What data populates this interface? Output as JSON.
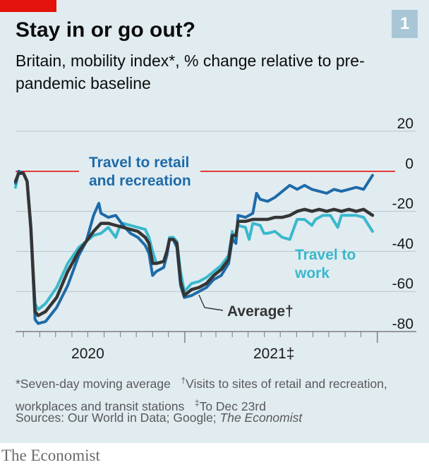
{
  "header": {
    "title": "Stay in or go out?",
    "subtitle": "Britain, mobility index*, % change relative to pre-pandemic baseline",
    "badge": "1"
  },
  "footnote": {
    "star": "*Seven-day moving average",
    "dagger_mark": "†",
    "dagger": "Visits to sites of retail and recreation, workplaces and transit stations",
    "ddagger_mark": "‡",
    "ddagger": "To Dec 23rd"
  },
  "sources": {
    "prefix": "Sources: Our World in Data; Google; ",
    "italic": "The Economist"
  },
  "brand": "The Economist",
  "colors": {
    "retail": "#1e6ba8",
    "work": "#3ab8cc",
    "average": "#353535",
    "baseline": "#e3120b",
    "grid": "#b7c4cb",
    "background": "#e1ecf1"
  },
  "chart_data": {
    "type": "line",
    "x_unit": "date",
    "x_ticks": [
      {
        "label": "2020",
        "date": "2020-07-01"
      },
      {
        "label": "2021‡",
        "date": "2021-07-01"
      }
    ],
    "ylim": [
      -80,
      20
    ],
    "yticks": [
      20,
      0,
      -20,
      -40,
      -60,
      -80
    ],
    "grid": true,
    "reference_line": 0,
    "series": [
      {
        "name": "Travel to retail and recreation",
        "label_lines": [
          "Travel to retail",
          "and recreation"
        ],
        "color": "#1e6ba8",
        "points": [
          [
            "2020-02-15",
            -6
          ],
          [
            "2020-02-21",
            0
          ],
          [
            "2020-03-01",
            -1
          ],
          [
            "2020-03-08",
            -5
          ],
          [
            "2020-03-15",
            -28
          ],
          [
            "2020-03-23",
            -74
          ],
          [
            "2020-03-29",
            -76
          ],
          [
            "2020-04-12",
            -75
          ],
          [
            "2020-05-03",
            -68
          ],
          [
            "2020-05-24",
            -57
          ],
          [
            "2020-06-14",
            -42
          ],
          [
            "2020-06-28",
            -35
          ],
          [
            "2020-07-12",
            -22
          ],
          [
            "2020-07-22",
            -16
          ],
          [
            "2020-07-26",
            -21
          ],
          [
            "2020-08-09",
            -23
          ],
          [
            "2020-08-23",
            -22
          ],
          [
            "2020-09-06",
            -27
          ],
          [
            "2020-09-20",
            -31
          ],
          [
            "2020-10-04",
            -33
          ],
          [
            "2020-10-18",
            -37
          ],
          [
            "2020-10-25",
            -41
          ],
          [
            "2020-11-01",
            -52
          ],
          [
            "2020-11-08",
            -50
          ],
          [
            "2020-11-22",
            -48
          ],
          [
            "2020-11-28",
            -42
          ],
          [
            "2020-12-03",
            -34
          ],
          [
            "2020-12-10",
            -34
          ],
          [
            "2020-12-17",
            -38
          ],
          [
            "2020-12-24",
            -57
          ],
          [
            "2020-12-31",
            -63
          ],
          [
            "2021-01-14",
            -62
          ],
          [
            "2021-01-28",
            -60
          ],
          [
            "2021-02-11",
            -58
          ],
          [
            "2021-02-25",
            -54
          ],
          [
            "2021-03-11",
            -52
          ],
          [
            "2021-03-25",
            -46
          ],
          [
            "2021-04-01",
            -34
          ],
          [
            "2021-04-08",
            -36
          ],
          [
            "2021-04-12",
            -22
          ],
          [
            "2021-04-26",
            -23
          ],
          [
            "2021-05-10",
            -21
          ],
          [
            "2021-05-17",
            -11
          ],
          [
            "2021-05-24",
            -14
          ],
          [
            "2021-06-07",
            -15
          ],
          [
            "2021-06-21",
            -13
          ],
          [
            "2021-07-05",
            -10
          ],
          [
            "2021-07-19",
            -7
          ],
          [
            "2021-08-02",
            -9
          ],
          [
            "2021-08-16",
            -7
          ],
          [
            "2021-08-30",
            -9
          ],
          [
            "2021-09-13",
            -10
          ],
          [
            "2021-09-27",
            -11
          ],
          [
            "2021-10-11",
            -9
          ],
          [
            "2021-10-25",
            -10
          ],
          [
            "2021-11-08",
            -9
          ],
          [
            "2021-11-22",
            -8
          ],
          [
            "2021-12-06",
            -9
          ],
          [
            "2021-12-23",
            -2
          ]
        ]
      },
      {
        "name": "Travel to work",
        "label_lines": [
          "Travel to",
          "work"
        ],
        "color": "#3ab8cc",
        "points": [
          [
            "2020-02-15",
            -8
          ],
          [
            "2020-02-21",
            0
          ],
          [
            "2020-03-01",
            -1
          ],
          [
            "2020-03-08",
            -5
          ],
          [
            "2020-03-15",
            -30
          ],
          [
            "2020-03-23",
            -66
          ],
          [
            "2020-03-29",
            -69
          ],
          [
            "2020-04-12",
            -66
          ],
          [
            "2020-05-03",
            -58
          ],
          [
            "2020-05-24",
            -46
          ],
          [
            "2020-06-14",
            -38
          ],
          [
            "2020-06-28",
            -35
          ],
          [
            "2020-07-12",
            -32
          ],
          [
            "2020-07-26",
            -31
          ],
          [
            "2020-08-09",
            -28
          ],
          [
            "2020-08-23",
            -33
          ],
          [
            "2020-08-30",
            -28
          ],
          [
            "2020-09-06",
            -26
          ],
          [
            "2020-09-20",
            -27
          ],
          [
            "2020-10-04",
            -28
          ],
          [
            "2020-10-18",
            -29
          ],
          [
            "2020-10-25",
            -33
          ],
          [
            "2020-11-01",
            -40
          ],
          [
            "2020-11-08",
            -46
          ],
          [
            "2020-11-22",
            -45
          ],
          [
            "2020-11-28",
            -42
          ],
          [
            "2020-12-03",
            -33
          ],
          [
            "2020-12-10",
            -33
          ],
          [
            "2020-12-17",
            -35
          ],
          [
            "2020-12-24",
            -50
          ],
          [
            "2020-12-31",
            -60
          ],
          [
            "2021-01-14",
            -56
          ],
          [
            "2021-01-28",
            -55
          ],
          [
            "2021-02-11",
            -53
          ],
          [
            "2021-02-25",
            -50
          ],
          [
            "2021-03-11",
            -47
          ],
          [
            "2021-03-25",
            -42
          ],
          [
            "2021-04-01",
            -30
          ],
          [
            "2021-04-05",
            -35
          ],
          [
            "2021-04-12",
            -27
          ],
          [
            "2021-04-26",
            -28
          ],
          [
            "2021-05-03",
            -34
          ],
          [
            "2021-05-10",
            -26
          ],
          [
            "2021-05-24",
            -27
          ],
          [
            "2021-05-31",
            -31
          ],
          [
            "2021-06-07",
            -31
          ],
          [
            "2021-06-21",
            -30
          ],
          [
            "2021-07-05",
            -33
          ],
          [
            "2021-07-19",
            -34
          ],
          [
            "2021-08-02",
            -24
          ],
          [
            "2021-08-16",
            -24
          ],
          [
            "2021-08-30",
            -27
          ],
          [
            "2021-09-06",
            -24
          ],
          [
            "2021-09-20",
            -22
          ],
          [
            "2021-10-04",
            -22
          ],
          [
            "2021-10-18",
            -28
          ],
          [
            "2021-10-25",
            -22
          ],
          [
            "2021-11-08",
            -22
          ],
          [
            "2021-11-22",
            -22
          ],
          [
            "2021-12-06",
            -23
          ],
          [
            "2021-12-23",
            -30
          ]
        ]
      },
      {
        "name": "Average†",
        "label_lines": [
          "Average†"
        ],
        "color": "#353535",
        "points": [
          [
            "2020-02-15",
            -5
          ],
          [
            "2020-02-21",
            -1
          ],
          [
            "2020-03-01",
            -1
          ],
          [
            "2020-03-08",
            -5
          ],
          [
            "2020-03-15",
            -28
          ],
          [
            "2020-03-23",
            -70
          ],
          [
            "2020-03-29",
            -72
          ],
          [
            "2020-04-12",
            -70
          ],
          [
            "2020-05-03",
            -63
          ],
          [
            "2020-05-24",
            -50
          ],
          [
            "2020-06-14",
            -40
          ],
          [
            "2020-06-28",
            -35
          ],
          [
            "2020-07-12",
            -30
          ],
          [
            "2020-07-26",
            -26
          ],
          [
            "2020-08-09",
            -26
          ],
          [
            "2020-08-23",
            -27
          ],
          [
            "2020-09-06",
            -28
          ],
          [
            "2020-09-20",
            -29
          ],
          [
            "2020-10-04",
            -30
          ],
          [
            "2020-10-18",
            -33
          ],
          [
            "2020-10-25",
            -36
          ],
          [
            "2020-11-01",
            -46
          ],
          [
            "2020-11-08",
            -46
          ],
          [
            "2020-11-22",
            -45
          ],
          [
            "2020-11-28",
            -40
          ],
          [
            "2020-12-03",
            -34
          ],
          [
            "2020-12-10",
            -34
          ],
          [
            "2020-12-17",
            -36
          ],
          [
            "2020-12-24",
            -55
          ],
          [
            "2020-12-31",
            -62
          ],
          [
            "2021-01-14",
            -59
          ],
          [
            "2021-01-28",
            -58
          ],
          [
            "2021-02-11",
            -56
          ],
          [
            "2021-02-25",
            -52
          ],
          [
            "2021-03-11",
            -49
          ],
          [
            "2021-03-25",
            -44
          ],
          [
            "2021-04-01",
            -32
          ],
          [
            "2021-04-08",
            -32
          ],
          [
            "2021-04-12",
            -25
          ],
          [
            "2021-04-26",
            -25
          ],
          [
            "2021-05-10",
            -24
          ],
          [
            "2021-05-24",
            -24
          ],
          [
            "2021-06-07",
            -24
          ],
          [
            "2021-06-21",
            -23
          ],
          [
            "2021-07-05",
            -23
          ],
          [
            "2021-07-19",
            -22
          ],
          [
            "2021-08-02",
            -20
          ],
          [
            "2021-08-16",
            -19
          ],
          [
            "2021-08-30",
            -20
          ],
          [
            "2021-09-13",
            -19
          ],
          [
            "2021-09-27",
            -20
          ],
          [
            "2021-10-11",
            -19
          ],
          [
            "2021-10-25",
            -20
          ],
          [
            "2021-11-08",
            -19
          ],
          [
            "2021-11-22",
            -20
          ],
          [
            "2021-12-06",
            -19
          ],
          [
            "2021-12-23",
            -22
          ]
        ]
      }
    ]
  }
}
